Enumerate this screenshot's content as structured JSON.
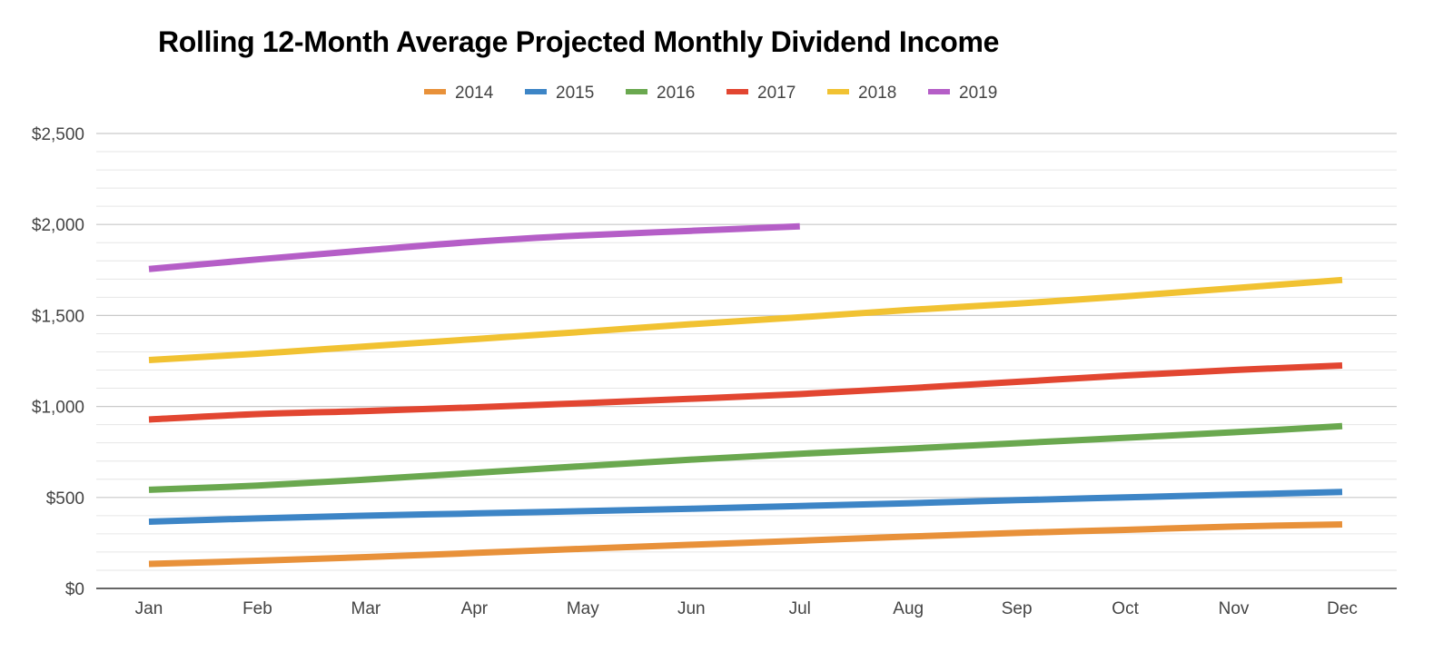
{
  "chart_data": {
    "type": "line",
    "title": "Rolling 12-Month Average Projected Monthly Dividend Income",
    "xlabel": "",
    "ylabel": "",
    "categories": [
      "Jan",
      "Feb",
      "Mar",
      "Apr",
      "May",
      "Jun",
      "Jul",
      "Aug",
      "Sep",
      "Oct",
      "Nov",
      "Dec"
    ],
    "ylim": [
      0,
      2500
    ],
    "yticks": [
      0,
      500,
      1000,
      1500,
      2000,
      2500
    ],
    "ytick_labels": [
      "$0",
      "$500",
      "$1,000",
      "$1,500",
      "$2,000",
      "$2,500"
    ],
    "grid": true,
    "minor_grid": true,
    "legend_position": "top",
    "series": [
      {
        "name": "2014",
        "color": "#e8913a",
        "values": [
          135,
          152,
          172,
          195,
          218,
          240,
          262,
          285,
          305,
          322,
          340,
          352
        ]
      },
      {
        "name": "2015",
        "color": "#3d85c6",
        "values": [
          367,
          385,
          400,
          412,
          425,
          438,
          453,
          468,
          485,
          500,
          515,
          530
        ]
      },
      {
        "name": "2016",
        "color": "#6aa84f",
        "values": [
          542,
          565,
          598,
          635,
          672,
          708,
          740,
          768,
          798,
          828,
          858,
          892
        ]
      },
      {
        "name": "2017",
        "color": "#e24631",
        "values": [
          928,
          958,
          975,
          995,
          1018,
          1042,
          1068,
          1100,
          1135,
          1170,
          1200,
          1225
        ]
      },
      {
        "name": "2018",
        "color": "#f1c232",
        "values": [
          1255,
          1290,
          1330,
          1370,
          1410,
          1452,
          1490,
          1530,
          1565,
          1605,
          1650,
          1695
        ]
      },
      {
        "name": "2019",
        "color": "#b55ec7",
        "values": [
          1755,
          1808,
          1858,
          1905,
          1940,
          1965,
          1990,
          null,
          null,
          null,
          null,
          null
        ]
      }
    ]
  }
}
